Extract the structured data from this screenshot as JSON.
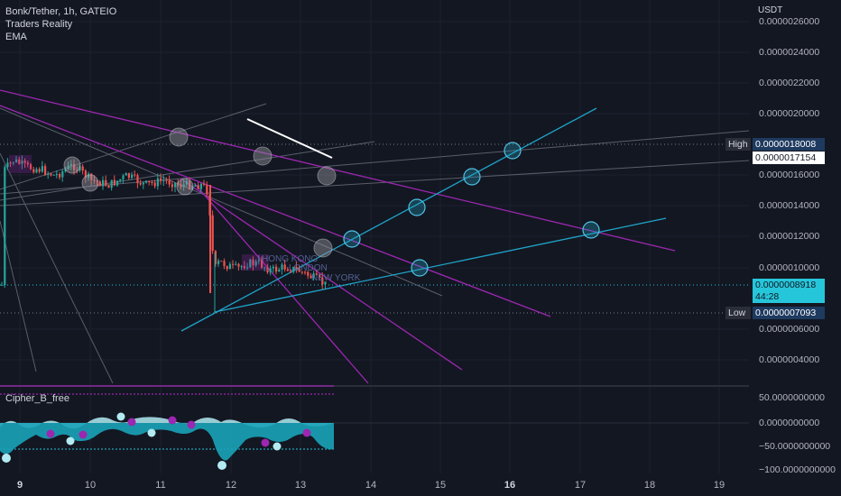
{
  "legend": {
    "symbol": "Bonk/Tether, 1h, GATEIO",
    "indicator_1": "Traders Reality",
    "indicator_2": "EMA"
  },
  "oscillator": {
    "title": "Cipher_B_free"
  },
  "price_axis": {
    "currency": "USDT",
    "ticks": [
      "0.0000026000",
      "0.0000024000",
      "0.0000022000",
      "0.0000020000",
      "0.0000016000",
      "0.0000014000",
      "0.0000012000",
      "0.0000010000",
      "0.0000006000",
      "0.0000004000"
    ]
  },
  "osc_axis": {
    "ticks": [
      "50.0000000000",
      "0.0000000000",
      "−50.0000000000",
      "−100.0000000000"
    ]
  },
  "time_axis": {
    "ticks": [
      "9",
      "10",
      "11",
      "12",
      "13",
      "14",
      "15",
      "16",
      "17",
      "18",
      "19"
    ]
  },
  "badges": {
    "high_label": "High",
    "high_value": "0.0000018008",
    "mid_value": "0.0000017154",
    "last_value": "0.0000008918",
    "countdown": "44:28",
    "low_label": "Low",
    "low_value": "0.0000007093"
  },
  "sessions": {
    "hong_kong": "HONG KONG",
    "london": "LONDON",
    "new_york": "NEW YORK"
  },
  "colors": {
    "background": "#131722",
    "up": "#26a69a",
    "down": "#ef5350",
    "trend_purple": "#9c27b0",
    "trend_cyan": "#1fa3c8",
    "last_price": "#26c6da"
  }
}
